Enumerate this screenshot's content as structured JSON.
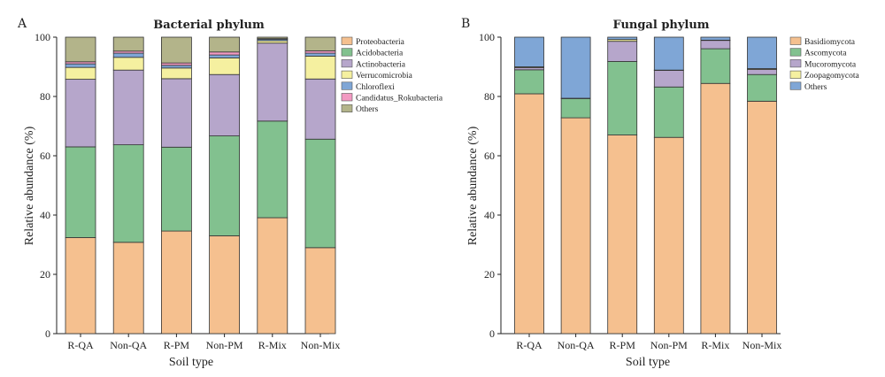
{
  "panels": [
    {
      "label": "A"
    },
    {
      "label": "B"
    }
  ],
  "chart_data": [
    {
      "type": "bar",
      "stacked": true,
      "title": "Bacterial phylum",
      "xlabel": "Soil type",
      "ylabel": "Relative abundance (%)",
      "ylim": [
        0,
        100
      ],
      "yticks": [
        0,
        20,
        40,
        60,
        80,
        100
      ],
      "legend_position": "right",
      "categories": [
        "R-QA",
        "Non-QA",
        "R-PM",
        "Non-PM",
        "R-Mix",
        "Non-Mix"
      ],
      "series": [
        {
          "name": "Proteobacteria",
          "color": "#f5c08f",
          "values": [
            32.4,
            30.8,
            34.6,
            33.0,
            39.1,
            29.0
          ]
        },
        {
          "name": "Acidobacteria",
          "color": "#82c18f",
          "values": [
            30.6,
            32.9,
            28.3,
            33.7,
            32.6,
            36.6
          ]
        },
        {
          "name": "Actinobacteria",
          "color": "#b6a6cb",
          "values": [
            22.8,
            25.2,
            23.1,
            20.7,
            26.3,
            20.3
          ]
        },
        {
          "name": "Verrucomicrobia",
          "color": "#f5f0a0",
          "values": [
            4.0,
            4.3,
            3.6,
            5.6,
            0.8,
            7.7
          ]
        },
        {
          "name": "Chloroflexi",
          "color": "#7fa6d6",
          "values": [
            1.2,
            1.4,
            0.9,
            1.0,
            0.5,
            1.0
          ]
        },
        {
          "name": "Candidatus_Rokubacteria",
          "color": "#f29ac2",
          "values": [
            0.7,
            0.7,
            0.8,
            1.0,
            0.2,
            0.8
          ]
        },
        {
          "name": "Others",
          "color": "#b3b48a",
          "values": [
            8.3,
            4.7,
            8.7,
            5.0,
            0.5,
            4.6
          ]
        }
      ]
    },
    {
      "type": "bar",
      "stacked": true,
      "title": "Fungal phylum",
      "xlabel": "Soil type",
      "ylabel": "Relative abundance (%)",
      "ylim": [
        0,
        100
      ],
      "yticks": [
        0,
        20,
        40,
        60,
        80,
        100
      ],
      "legend_position": "right",
      "categories": [
        "R-QA",
        "Non-QA",
        "R-PM",
        "Non-PM",
        "R-Mix",
        "Non-Mix"
      ],
      "series": [
        {
          "name": "Basidiomycota",
          "color": "#f5c08f",
          "values": [
            80.9,
            72.8,
            67.0,
            66.2,
            84.4,
            78.4
          ]
        },
        {
          "name": "Ascomycota",
          "color": "#82c18f",
          "values": [
            8.1,
            6.5,
            24.8,
            17.0,
            11.7,
            9.0
          ]
        },
        {
          "name": "Mucoromycota",
          "color": "#b6a6cb",
          "values": [
            0.7,
            0.1,
            6.8,
            5.6,
            2.8,
            1.7
          ]
        },
        {
          "name": "Zoopagomycota",
          "color": "#f5f0a0",
          "values": [
            0.3,
            0.0,
            0.6,
            0.1,
            0.1,
            0.3
          ]
        },
        {
          "name": "Others",
          "color": "#7fa6d6",
          "values": [
            10.0,
            20.6,
            0.8,
            11.1,
            1.0,
            10.6
          ]
        }
      ]
    }
  ]
}
